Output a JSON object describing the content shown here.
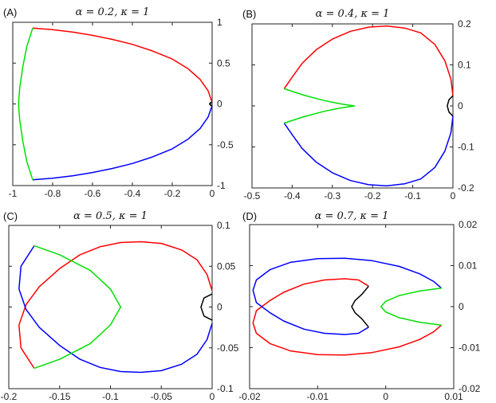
{
  "figure": {
    "panel_labels": [
      "(A)",
      "(B)",
      "(C)",
      "(D)"
    ]
  },
  "colors": {
    "red": "#ff0000",
    "blue": "#0000ff",
    "green": "#00e000",
    "black": "#000000"
  },
  "chart_data": [
    {
      "id": "A",
      "type": "line",
      "title": "α = 0.2, κ = 1",
      "xlim": [
        -1,
        0
      ],
      "ylim": [
        -1,
        1
      ],
      "xticks": [
        -1,
        -0.8,
        -0.6,
        -0.4,
        -0.2,
        0
      ],
      "xtick_labels": [
        "-1",
        "-0.8",
        "-0.6",
        "-0.4",
        "-0.2",
        "0"
      ],
      "yticks": [
        -1,
        -0.5,
        0,
        0.5,
        1
      ],
      "ytick_labels": [
        "-1",
        "-0.5",
        "0",
        "0.5",
        "1"
      ],
      "y_axis_side": "right",
      "grid": false,
      "series": [
        {
          "color": "red",
          "x": [
            0,
            -0.02,
            -0.06,
            -0.12,
            -0.2,
            -0.3,
            -0.4,
            -0.5,
            -0.6,
            -0.7,
            -0.8,
            -0.9
          ],
          "y": [
            0.02,
            0.16,
            0.3,
            0.43,
            0.55,
            0.65,
            0.73,
            0.79,
            0.84,
            0.88,
            0.91,
            0.93
          ]
        },
        {
          "color": "blue",
          "x": [
            0,
            -0.02,
            -0.06,
            -0.12,
            -0.2,
            -0.3,
            -0.4,
            -0.5,
            -0.6,
            -0.7,
            -0.8,
            -0.9
          ],
          "y": [
            -0.02,
            -0.16,
            -0.3,
            -0.43,
            -0.55,
            -0.65,
            -0.73,
            -0.79,
            -0.84,
            -0.88,
            -0.91,
            -0.93
          ]
        },
        {
          "color": "green",
          "x": [
            -0.9,
            -0.93,
            -0.95,
            -0.965,
            -0.97,
            -0.97,
            -0.97,
            -0.965,
            -0.95,
            -0.93,
            -0.9
          ],
          "y": [
            0.93,
            0.7,
            0.45,
            0.2,
            0.05,
            0,
            -0.05,
            -0.2,
            -0.45,
            -0.7,
            -0.93
          ]
        },
        {
          "color": "black",
          "x": [
            0,
            -0.008,
            -0.012,
            -0.008,
            0
          ],
          "y": [
            0.022,
            0.018,
            0,
            -0.018,
            -0.022
          ]
        }
      ]
    },
    {
      "id": "B",
      "type": "line",
      "title": "α = 0.4, κ = 1",
      "xlim": [
        -0.5,
        0
      ],
      "ylim": [
        -0.2,
        0.2
      ],
      "xticks": [
        -0.5,
        -0.4,
        -0.3,
        -0.2,
        -0.1,
        0
      ],
      "xtick_labels": [
        "-0.5",
        "-0.4",
        "-0.3",
        "-0.2",
        "-0.1",
        "0"
      ],
      "yticks": [
        -0.2,
        -0.1,
        0,
        0.1,
        0.2
      ],
      "ytick_labels": [
        "-0.2",
        "-0.1",
        "0",
        "0.1",
        "0.2"
      ],
      "y_axis_side": "right",
      "grid": false,
      "series": [
        {
          "color": "red",
          "x": [
            0,
            -0.005,
            -0.02,
            -0.045,
            -0.08,
            -0.12,
            -0.165,
            -0.21,
            -0.255,
            -0.3,
            -0.34,
            -0.375,
            -0.4,
            -0.42
          ],
          "y": [
            0.025,
            0.065,
            0.11,
            0.15,
            0.178,
            0.19,
            0.195,
            0.192,
            0.182,
            0.163,
            0.137,
            0.104,
            0.07,
            0.042
          ]
        },
        {
          "color": "blue",
          "x": [
            0,
            -0.005,
            -0.02,
            -0.045,
            -0.08,
            -0.12,
            -0.165,
            -0.21,
            -0.255,
            -0.3,
            -0.34,
            -0.375,
            -0.4,
            -0.42
          ],
          "y": [
            -0.025,
            -0.065,
            -0.11,
            -0.15,
            -0.178,
            -0.19,
            -0.195,
            -0.192,
            -0.182,
            -0.163,
            -0.137,
            -0.104,
            -0.07,
            -0.042
          ]
        },
        {
          "color": "green",
          "x": [
            -0.42,
            -0.37,
            -0.32,
            -0.28,
            -0.245,
            -0.28,
            -0.32,
            -0.37,
            -0.42
          ],
          "y": [
            0.042,
            0.026,
            0.013,
            0.005,
            0,
            -0.005,
            -0.013,
            -0.026,
            -0.042
          ]
        },
        {
          "color": "black",
          "x": [
            0,
            -0.01,
            -0.014,
            -0.01,
            0
          ],
          "y": [
            0.025,
            0.015,
            0,
            -0.015,
            -0.025
          ]
        }
      ]
    },
    {
      "id": "C",
      "type": "line",
      "title": "α = 0.5, κ = 1",
      "xlim": [
        -0.2,
        0
      ],
      "ylim": [
        -0.1,
        0.1
      ],
      "xticks": [
        -0.2,
        -0.15,
        -0.1,
        -0.05,
        0
      ],
      "xtick_labels": [
        "-0.2",
        "-0.15",
        "-0.1",
        "-0.05",
        "0"
      ],
      "yticks": [
        -0.1,
        -0.05,
        0,
        0.05,
        0.1
      ],
      "ytick_labels": [
        "-0.1",
        "-0.05",
        "0",
        "0.05",
        "0.1"
      ],
      "y_axis_side": "right",
      "grid": false,
      "series": [
        {
          "color": "red",
          "x": [
            0,
            -0.005,
            -0.015,
            -0.03,
            -0.05,
            -0.07,
            -0.09,
            -0.11,
            -0.13,
            -0.15,
            -0.17,
            -0.183,
            -0.19,
            -0.188,
            -0.175
          ],
          "y": [
            0.02,
            0.04,
            0.058,
            0.07,
            0.078,
            0.08,
            0.079,
            0.074,
            0.064,
            0.047,
            0.025,
            0.003,
            -0.022,
            -0.05,
            -0.075
          ]
        },
        {
          "color": "blue",
          "x": [
            0,
            -0.005,
            -0.015,
            -0.03,
            -0.05,
            -0.07,
            -0.09,
            -0.11,
            -0.13,
            -0.15,
            -0.17,
            -0.183,
            -0.19,
            -0.188,
            -0.175
          ],
          "y": [
            -0.02,
            -0.04,
            -0.058,
            -0.07,
            -0.078,
            -0.08,
            -0.079,
            -0.074,
            -0.064,
            -0.047,
            -0.025,
            -0.003,
            0.022,
            0.05,
            0.075
          ]
        },
        {
          "color": "green",
          "x": [
            -0.175,
            -0.15,
            -0.12,
            -0.1,
            -0.09,
            -0.1,
            -0.12,
            -0.15,
            -0.175
          ],
          "y": [
            0.075,
            0.064,
            0.045,
            0.022,
            0,
            -0.022,
            -0.045,
            -0.064,
            -0.075
          ]
        },
        {
          "color": "black",
          "x": [
            0,
            -0.008,
            -0.011,
            -0.008,
            0
          ],
          "y": [
            0.016,
            0.011,
            0,
            -0.011,
            -0.016
          ]
        }
      ]
    },
    {
      "id": "D",
      "type": "line",
      "title": "α = 0.7, κ = 1",
      "xlim": [
        -0.02,
        0.01
      ],
      "ylim": [
        -0.02,
        0.02
      ],
      "xticks": [
        -0.02,
        -0.01,
        0,
        0.01
      ],
      "xtick_labels": [
        "-0.02",
        "-0.01",
        "0",
        "0.01"
      ],
      "yticks": [
        -0.02,
        -0.01,
        0,
        0.01,
        0.02
      ],
      "ytick_labels": [
        "-0.02",
        "-0.01",
        "0",
        "0.01",
        "0.02"
      ],
      "y_axis_side": "right",
      "grid": false,
      "series": [
        {
          "color": "red",
          "x": [
            -0.0025,
            -0.004,
            -0.006,
            -0.009,
            -0.012,
            -0.015,
            -0.017,
            -0.019,
            -0.0195,
            -0.019,
            -0.017,
            -0.014,
            -0.01,
            -0.006,
            -0.002,
            0.002,
            0.005,
            0.007,
            0.0082
          ],
          "y": [
            0.005,
            0.0065,
            0.0068,
            0.0065,
            0.0055,
            0.0035,
            0.0015,
            -0.001,
            -0.004,
            -0.0065,
            -0.009,
            -0.0108,
            -0.0117,
            -0.0118,
            -0.0112,
            -0.0098,
            -0.008,
            -0.0062,
            -0.0045
          ]
        },
        {
          "color": "blue",
          "x": [
            -0.0025,
            -0.004,
            -0.006,
            -0.009,
            -0.012,
            -0.015,
            -0.017,
            -0.019,
            -0.0195,
            -0.019,
            -0.017,
            -0.014,
            -0.01,
            -0.006,
            -0.002,
            0.002,
            0.005,
            0.007,
            0.0082
          ],
          "y": [
            -0.005,
            -0.0065,
            -0.0068,
            -0.0065,
            -0.0055,
            -0.0035,
            -0.0015,
            0.001,
            0.004,
            0.0065,
            0.009,
            0.0108,
            0.0117,
            0.0118,
            0.0112,
            0.0098,
            0.008,
            0.0062,
            0.0045
          ]
        },
        {
          "color": "green",
          "x": [
            0.0082,
            0.005,
            0.002,
            0,
            -0.0007,
            0,
            0.002,
            0.005,
            0.0082
          ],
          "y": [
            0.0045,
            0.0038,
            0.0027,
            0.0013,
            0,
            -0.0013,
            -0.0027,
            -0.0038,
            -0.0045
          ]
        },
        {
          "color": "black",
          "x": [
            -0.0025,
            -0.0035,
            -0.0045,
            -0.005,
            -0.0045,
            -0.0035,
            -0.0025
          ],
          "y": [
            0.005,
            0.003,
            0.0015,
            0,
            -0.0015,
            -0.003,
            -0.005
          ]
        }
      ]
    }
  ]
}
